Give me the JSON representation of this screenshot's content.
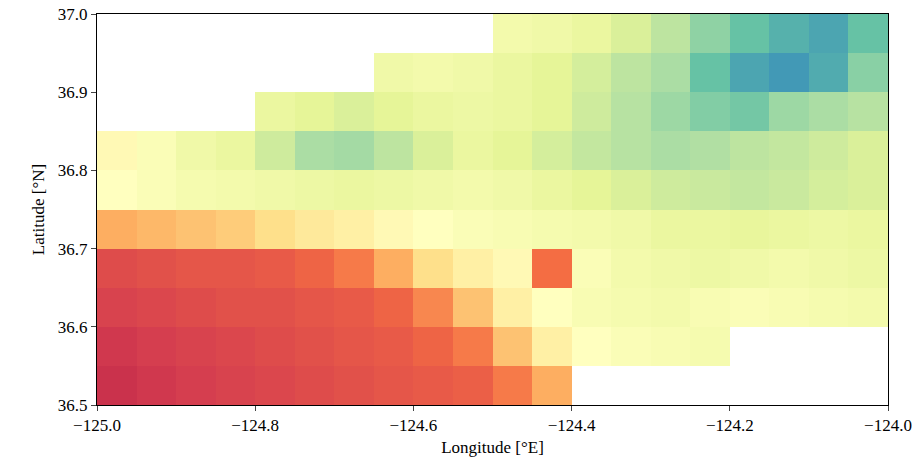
{
  "chart_data": {
    "type": "heatmap",
    "xlabel": "Longitude [°E]",
    "ylabel": "Latitude [°N]",
    "xlim": [
      -125,
      -124
    ],
    "ylim": [
      36.5,
      37
    ],
    "xticks": [
      {
        "value": -125,
        "label": "−125.0"
      },
      {
        "value": -124.8,
        "label": "−124.8"
      },
      {
        "value": -124.6,
        "label": "−124.6"
      },
      {
        "value": -124.4,
        "label": "−124.4"
      },
      {
        "value": -124.2,
        "label": "−124.2"
      },
      {
        "value": -124,
        "label": "−124.0"
      }
    ],
    "yticks": [
      36.5,
      36.6,
      36.7,
      36.8,
      36.9,
      {
        "value": 37,
        "label": "37.0"
      }
    ],
    "zlim": [
      0,
      1
    ],
    "x": [
      -124.975,
      -124.925,
      -124.875,
      -124.825,
      -124.775,
      -124.725,
      -124.675,
      -124.625,
      -124.575,
      -124.525,
      -124.475,
      -124.425,
      -124.375,
      -124.325,
      -124.275,
      -124.225,
      -124.175,
      -124.125,
      -124.075,
      -124.025
    ],
    "y": [
      36.525,
      36.575,
      36.625,
      36.675,
      36.725,
      36.775,
      36.825,
      36.875,
      36.925,
      36.975
    ],
    "z": [
      [
        0.92,
        0.91,
        0.9,
        0.89,
        0.88,
        0.87,
        0.86,
        0.85,
        0.84,
        0.83,
        0.78,
        0.7,
        null,
        null,
        null,
        null,
        null,
        null,
        null,
        null
      ],
      [
        0.91,
        0.9,
        0.89,
        0.88,
        0.87,
        0.86,
        0.85,
        0.84,
        0.82,
        0.78,
        0.66,
        0.55,
        0.5,
        0.48,
        0.47,
        0.46,
        null,
        null,
        null,
        null
      ],
      [
        0.89,
        0.88,
        0.87,
        0.86,
        0.86,
        0.85,
        0.84,
        0.82,
        0.76,
        0.66,
        0.55,
        0.5,
        0.47,
        0.46,
        0.45,
        0.47,
        0.48,
        0.47,
        0.46,
        0.45
      ],
      [
        0.87,
        0.86,
        0.85,
        0.85,
        0.84,
        0.82,
        0.78,
        0.7,
        0.6,
        0.55,
        0.52,
        0.8,
        0.48,
        0.45,
        0.44,
        0.43,
        0.44,
        0.45,
        0.44,
        0.43
      ],
      [
        0.7,
        0.68,
        0.66,
        0.64,
        0.6,
        0.57,
        0.55,
        0.52,
        0.5,
        0.48,
        0.47,
        0.46,
        0.45,
        0.44,
        0.42,
        0.42,
        0.41,
        0.42,
        0.43,
        0.42
      ],
      [
        0.5,
        0.48,
        0.46,
        0.45,
        0.44,
        0.43,
        0.42,
        0.43,
        0.44,
        0.45,
        0.44,
        0.42,
        0.4,
        0.38,
        0.36,
        0.35,
        0.34,
        0.35,
        0.37,
        0.38
      ],
      [
        0.52,
        0.48,
        0.44,
        0.42,
        0.36,
        0.3,
        0.29,
        0.33,
        0.38,
        0.42,
        0.4,
        0.37,
        0.34,
        0.32,
        0.3,
        0.31,
        0.33,
        0.34,
        0.36,
        0.38
      ],
      [
        null,
        null,
        null,
        null,
        0.42,
        0.4,
        0.38,
        0.4,
        0.42,
        0.43,
        0.42,
        0.4,
        0.36,
        0.32,
        0.28,
        0.24,
        0.22,
        0.28,
        0.3,
        0.32
      ],
      [
        null,
        null,
        null,
        null,
        null,
        null,
        null,
        0.44,
        0.45,
        0.44,
        0.42,
        0.4,
        0.37,
        0.33,
        0.3,
        0.2,
        0.15,
        0.13,
        0.16,
        0.25
      ],
      [
        null,
        null,
        null,
        null,
        null,
        null,
        null,
        null,
        null,
        null,
        0.45,
        0.44,
        0.42,
        0.38,
        0.33,
        0.26,
        0.2,
        0.17,
        0.15,
        0.2
      ]
    ]
  }
}
